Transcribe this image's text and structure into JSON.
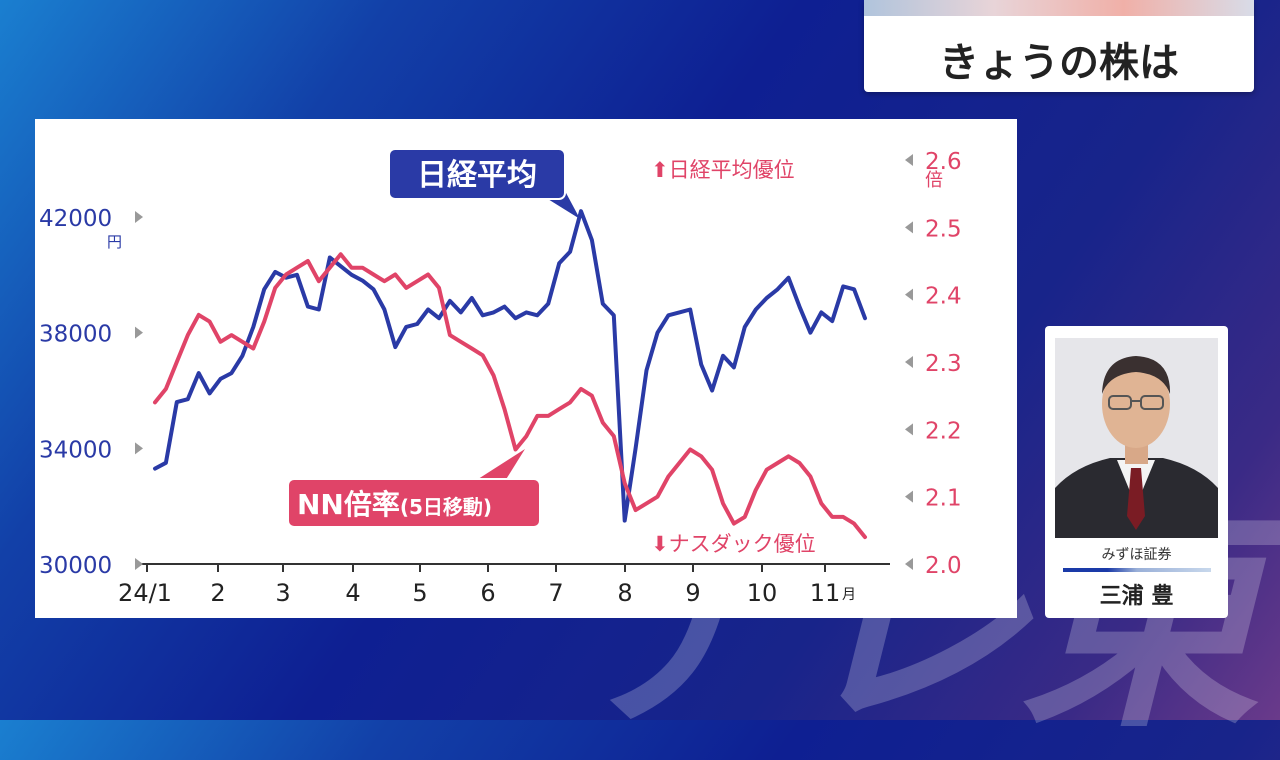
{
  "header": {
    "title": "きょうの株は"
  },
  "person": {
    "company": "みずほ証券",
    "name": "三浦 豊"
  },
  "watermark": "テレ東",
  "chart_data": {
    "type": "line",
    "x_tick_labels": [
      "24/1",
      "2",
      "3",
      "4",
      "5",
      "6",
      "7",
      "8",
      "9",
      "10",
      "11"
    ],
    "x_unit": "月",
    "left_axis": {
      "ticks": [
        "30000",
        "34000",
        "38000",
        "42000"
      ],
      "unit": "円",
      "range": [
        30000,
        42000
      ]
    },
    "right_axis": {
      "ticks": [
        "2.0",
        "2.1",
        "2.2",
        "2.3",
        "2.4",
        "2.5",
        "2.6"
      ],
      "unit": "倍",
      "range": [
        2.0,
        2.6
      ]
    },
    "annotations": {
      "nikkei_label": "日経平均",
      "nn_label": "NN倍率",
      "nn_sub": "(5日移動)",
      "up_label": "日経平均優位",
      "down_label": "ナスダック優位"
    },
    "colors": {
      "nikkei": "#2a3aa6",
      "nn": "#e04468",
      "axis_left": "#2a3aa6",
      "axis_right": "#e04468"
    },
    "series": [
      {
        "name": "日経平均",
        "axis": "left",
        "values": [
          33300,
          33500,
          35600,
          35700,
          36600,
          35900,
          36400,
          36600,
          37200,
          38200,
          39500,
          40100,
          39900,
          40000,
          38900,
          38800,
          40600,
          40300,
          40000,
          39800,
          39500,
          38800,
          37500,
          38200,
          38300,
          38800,
          38500,
          39100,
          38700,
          39200,
          38600,
          38700,
          38900,
          38500,
          38700,
          38600,
          39000,
          40400,
          40800,
          42200,
          41200,
          39000,
          38600,
          31500,
          34000,
          36700,
          38000,
          38600,
          38700,
          38800,
          36900,
          36000,
          37200,
          36800,
          38200,
          38800,
          39200,
          39500,
          39900,
          38900,
          38000,
          38700,
          38400,
          39600,
          39500,
          38500
        ]
      },
      {
        "name": "NN倍率",
        "axis": "right",
        "values": [
          2.24,
          2.26,
          2.3,
          2.34,
          2.37,
          2.36,
          2.33,
          2.34,
          2.33,
          2.32,
          2.36,
          2.41,
          2.43,
          2.44,
          2.45,
          2.42,
          2.44,
          2.46,
          2.44,
          2.44,
          2.43,
          2.42,
          2.43,
          2.41,
          2.42,
          2.43,
          2.41,
          2.34,
          2.33,
          2.32,
          2.31,
          2.28,
          2.23,
          2.17,
          2.19,
          2.22,
          2.22,
          2.23,
          2.24,
          2.26,
          2.25,
          2.21,
          2.19,
          2.12,
          2.08,
          2.09,
          2.1,
          2.13,
          2.15,
          2.17,
          2.16,
          2.14,
          2.09,
          2.06,
          2.07,
          2.11,
          2.14,
          2.15,
          2.16,
          2.15,
          2.13,
          2.09,
          2.07,
          2.07,
          2.06,
          2.04
        ]
      }
    ]
  }
}
